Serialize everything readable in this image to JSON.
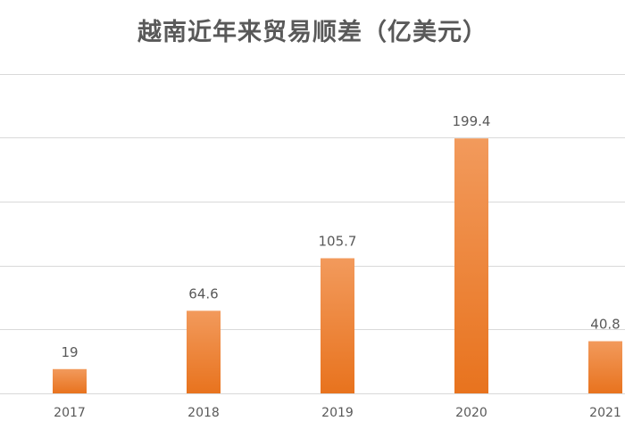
{
  "title": "越南近年来贸易顺差（亿美元）",
  "colors": {
    "bar_top": "#f29a5c",
    "bar_bottom": "#e8731e",
    "grid": "#d9d9d9",
    "text": "#595959"
  },
  "chart_data": {
    "type": "bar",
    "title": "越南近年来贸易顺差（亿美元）",
    "categories": [
      "2017",
      "2018",
      "2019",
      "2020",
      "2021"
    ],
    "series": [
      {
        "values": [
          19,
          64.6,
          105.7,
          199.4,
          40.8
        ]
      }
    ],
    "data_labels": [
      "19",
      "64.6",
      "105.7",
      "199.4",
      "40.8"
    ],
    "xlabel": "",
    "ylabel": "",
    "ylim": [
      0,
      250
    ],
    "y_tick_step": 50,
    "y_tick_labels_visible": false,
    "grid": true,
    "legend": "none"
  }
}
